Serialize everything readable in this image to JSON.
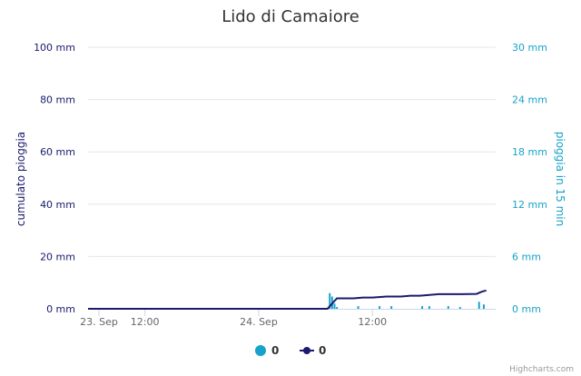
{
  "chart_data": {
    "type": "line",
    "title": "Lido di Camaiore",
    "x_range": [
      "2023-09-23 06:00",
      "2023-09-25 01:00"
    ],
    "x_ticks": [
      "23. Sep",
      "12:00",
      "24. Sep",
      "12:00"
    ],
    "y_left": {
      "label": "cumulato pioggia",
      "unit": "mm",
      "range": [
        0,
        100
      ],
      "ticks": [
        "0 mm",
        "20 mm",
        "40 mm",
        "60 mm",
        "80 mm",
        "100 mm"
      ]
    },
    "y_right": {
      "label": "pioggia in 15 min",
      "unit": "mm",
      "range": [
        0,
        30
      ],
      "ticks": [
        "0 mm",
        "6 mm",
        "12 mm",
        "18 mm",
        "24 mm",
        "30 mm"
      ]
    },
    "grid": true,
    "legend_position": "bottom-center",
    "series": [
      {
        "name": "0",
        "type": "column",
        "axis": "right",
        "color": "#17a2c9",
        "points": [
          [
            "2023-09-24 07:30",
            1.8
          ],
          [
            "2023-09-24 07:45",
            1.4
          ],
          [
            "2023-09-24 08:00",
            0.6
          ],
          [
            "2023-09-24 08:15",
            0.2
          ],
          [
            "2023-09-24 10:30",
            0.3
          ],
          [
            "2023-09-24 12:45",
            0.3
          ],
          [
            "2023-09-24 14:00",
            0.3
          ],
          [
            "2023-09-24 17:15",
            0.3
          ],
          [
            "2023-09-24 18:00",
            0.3
          ],
          [
            "2023-09-24 20:00",
            0.3
          ],
          [
            "2023-09-24 21:15",
            0.2
          ],
          [
            "2023-09-24 23:15",
            0.8
          ],
          [
            "2023-09-24 23:45",
            0.5
          ]
        ]
      },
      {
        "name": "0",
        "type": "line",
        "axis": "left",
        "color": "#1a1a6e",
        "points": [
          [
            "2023-09-23 06:00",
            0
          ],
          [
            "2023-09-24 07:15",
            0
          ],
          [
            "2023-09-24 08:15",
            4.0
          ],
          [
            "2023-09-24 10:00",
            4.0
          ],
          [
            "2023-09-24 11:00",
            4.3
          ],
          [
            "2023-09-24 12:00",
            4.3
          ],
          [
            "2023-09-24 13:30",
            4.7
          ],
          [
            "2023-09-24 15:00",
            4.7
          ],
          [
            "2023-09-24 16:00",
            5.0
          ],
          [
            "2023-09-24 17:00",
            5.0
          ],
          [
            "2023-09-24 18:00",
            5.3
          ],
          [
            "2023-09-24 19:00",
            5.6
          ],
          [
            "2023-09-24 21:00",
            5.6
          ],
          [
            "2023-09-24 23:00",
            5.7
          ],
          [
            "2023-09-24 23:30",
            6.5
          ],
          [
            "2023-09-25 00:00",
            7.0
          ]
        ]
      }
    ],
    "credits": "Highcharts.com"
  }
}
